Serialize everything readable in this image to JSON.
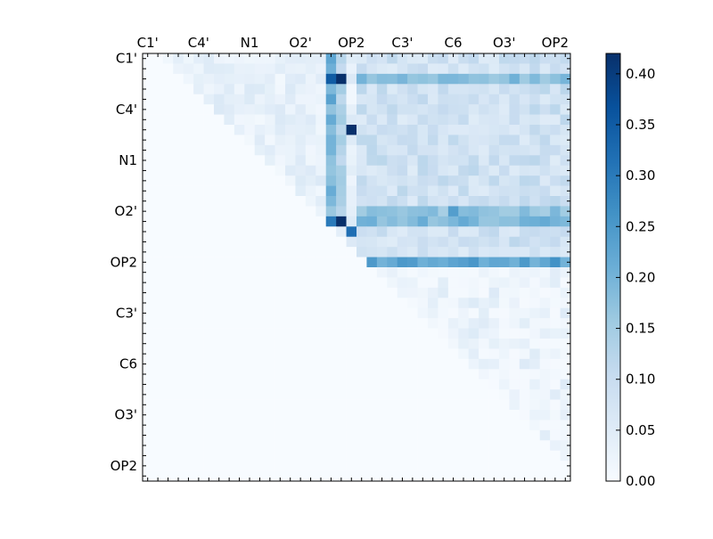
{
  "chart_data": {
    "type": "heatmap",
    "grid_size": 42,
    "axis_labels": [
      "C1'",
      "C4'",
      "N1",
      "O2'",
      "OP2",
      "C3'",
      "C6",
      "O3'",
      "OP2"
    ],
    "colorbar": {
      "min": 0.0,
      "max": 0.42,
      "ticks": [
        0.0,
        0.05,
        0.1,
        0.15,
        0.2,
        0.25,
        0.3,
        0.35,
        0.4
      ],
      "tick_labels": [
        "0.00",
        "0.05",
        "0.10",
        "0.15",
        "0.20",
        "0.25",
        "0.30",
        "0.35",
        "0.40"
      ],
      "colormap": "Blues"
    },
    "triangle": "upper",
    "label_cell_positions": [
      0,
      5,
      10,
      15,
      20,
      25,
      30,
      35,
      40
    ],
    "notable_cells": [
      {
        "row": 2,
        "col": 19,
        "value": 0.42
      },
      {
        "row": 7,
        "col": 20,
        "value": 0.42
      },
      {
        "row": 16,
        "col": 19,
        "value": 0.42
      },
      {
        "row": 17,
        "col": 20,
        "value": 0.32
      },
      {
        "row": 2,
        "col": 18,
        "value": 0.35
      },
      {
        "row": 16,
        "col": 18,
        "value": 0.3
      },
      {
        "row": 20,
        "col": 25,
        "value": 0.25
      },
      {
        "row": 15,
        "col": 30,
        "value": 0.24
      }
    ],
    "strong_rows": [
      {
        "row": 2,
        "from": 21,
        "to": 41,
        "value": 0.18
      },
      {
        "row": 15,
        "from": 21,
        "to": 41,
        "value": 0.17
      },
      {
        "row": 16,
        "from": 21,
        "to": 41,
        "value": 0.19
      },
      {
        "row": 20,
        "from": 22,
        "to": 41,
        "value": 0.23
      }
    ],
    "strong_cols": [
      {
        "col": 18,
        "from": 0,
        "to": 16,
        "value": 0.2
      },
      {
        "col": 19,
        "from": 0,
        "to": 16,
        "value": 0.13
      }
    ]
  },
  "colors": {
    "low": "#f7fbff",
    "high": "#08306b"
  }
}
